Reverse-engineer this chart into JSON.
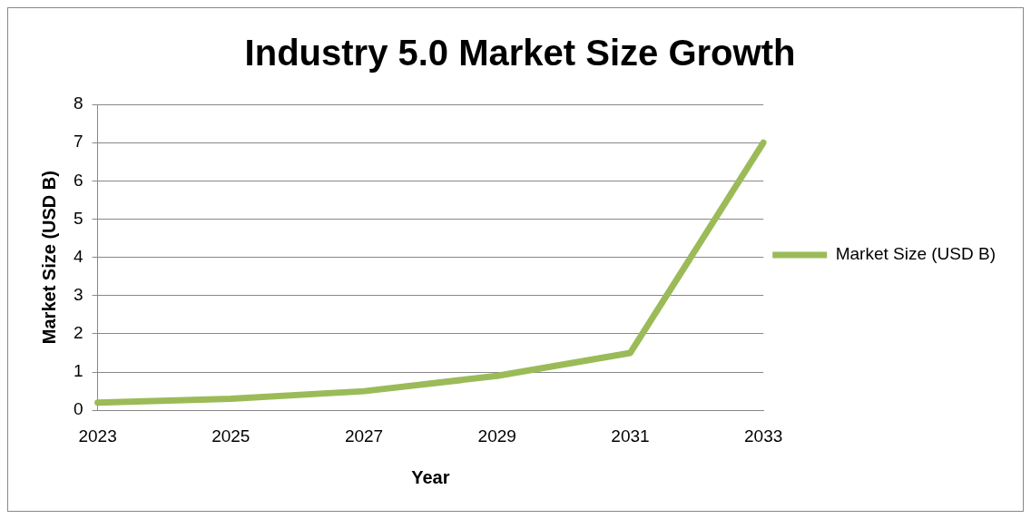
{
  "chart_data": {
    "type": "line",
    "title": "Industry 5.0 Market Size Growth",
    "xlabel": "Year",
    "ylabel": "Market Size (USD B)",
    "categories": [
      "2023",
      "2025",
      "2027",
      "2029",
      "2031",
      "2033"
    ],
    "series": [
      {
        "name": "Market Size (USD B)",
        "color": "#9bbb59",
        "values": [
          0.2,
          0.3,
          0.5,
          0.9,
          1.5,
          7.0
        ]
      }
    ],
    "ylim": [
      0,
      8
    ],
    "yticks": [
      0,
      1,
      2,
      3,
      4,
      5,
      6,
      7,
      8
    ],
    "grid": "y",
    "legend": "right",
    "marker": "none",
    "line_style": "solid"
  }
}
